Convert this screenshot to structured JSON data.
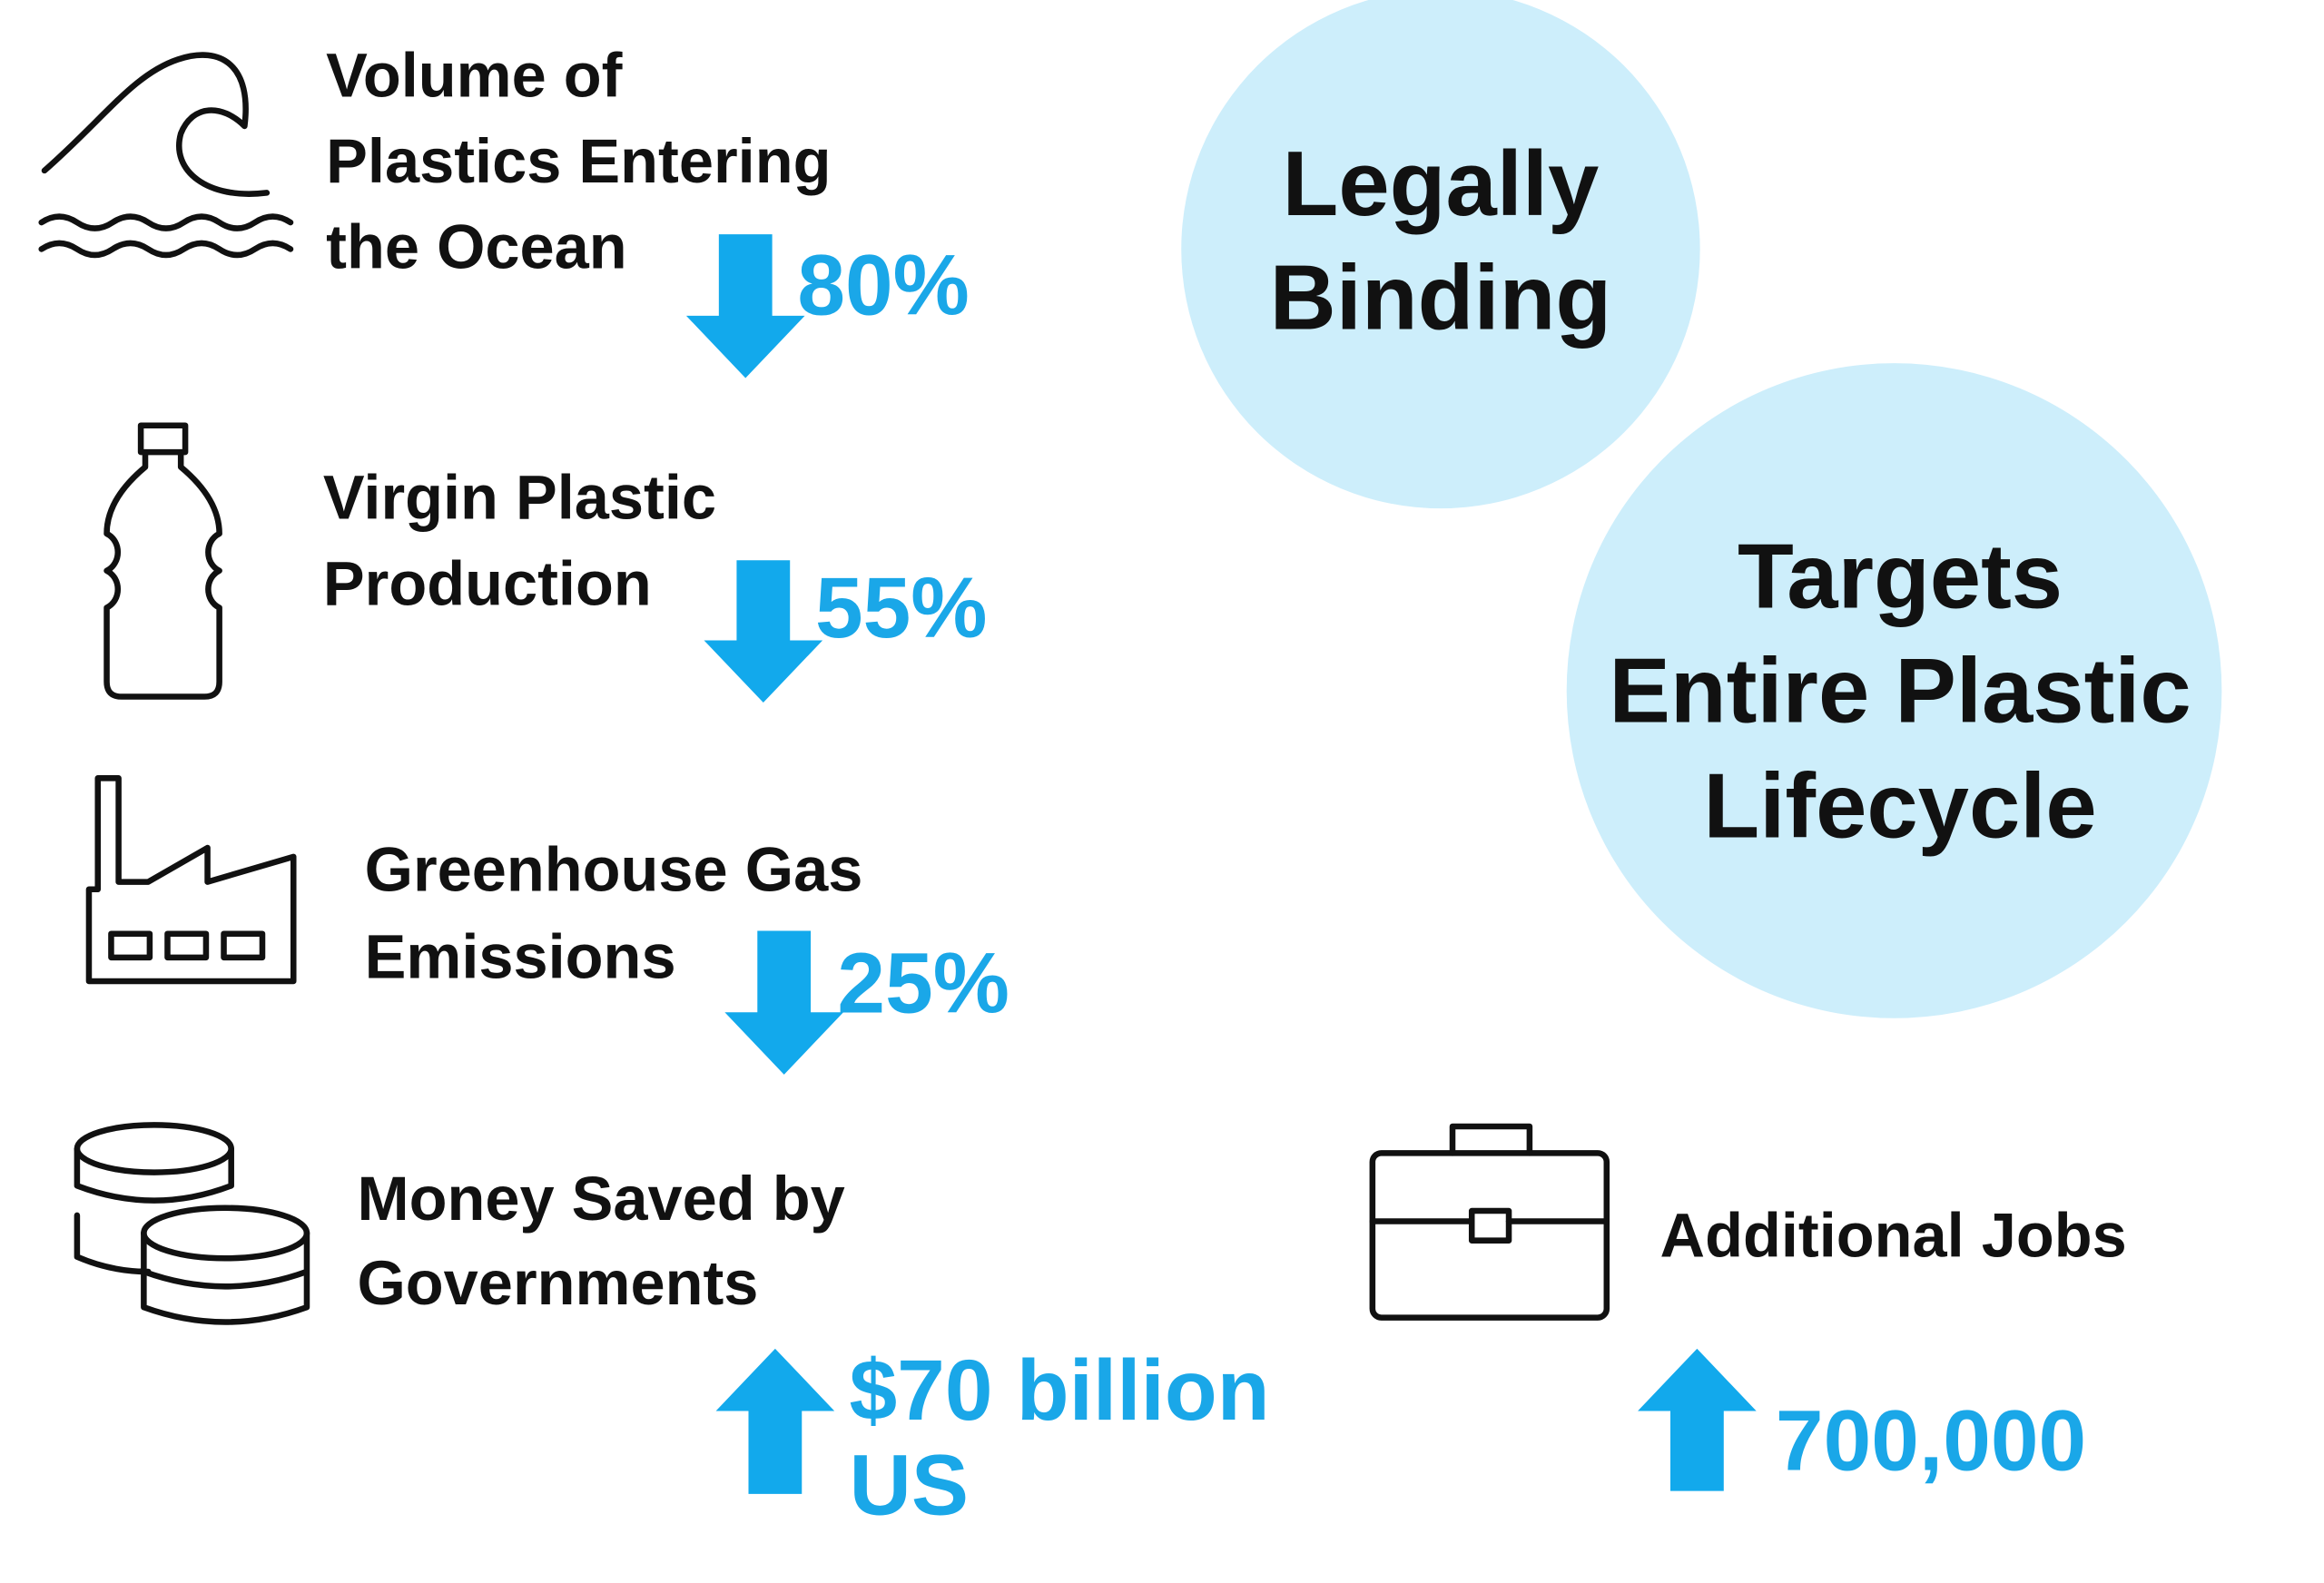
{
  "items": [
    {
      "label": [
        "Volume of",
        "Plastics Entering",
        "the Ocean"
      ],
      "value": [
        "80%"
      ]
    },
    {
      "label": [
        "Virgin Plastic",
        "Production"
      ],
      "value": [
        "55%"
      ]
    },
    {
      "label": [
        "Greenhouse Gas",
        "Emissions"
      ],
      "value": [
        "25%"
      ]
    },
    {
      "label": [
        "Money Saved by",
        "Governments"
      ],
      "value": [
        "$70 billion",
        "US"
      ]
    },
    {
      "label": [
        "Additional Jobs"
      ],
      "value": [
        "700,000"
      ]
    }
  ],
  "badges": [
    [
      "Legally",
      "Binding"
    ],
    [
      "Targets",
      "Entire Plastic",
      "Lifecycle"
    ]
  ]
}
